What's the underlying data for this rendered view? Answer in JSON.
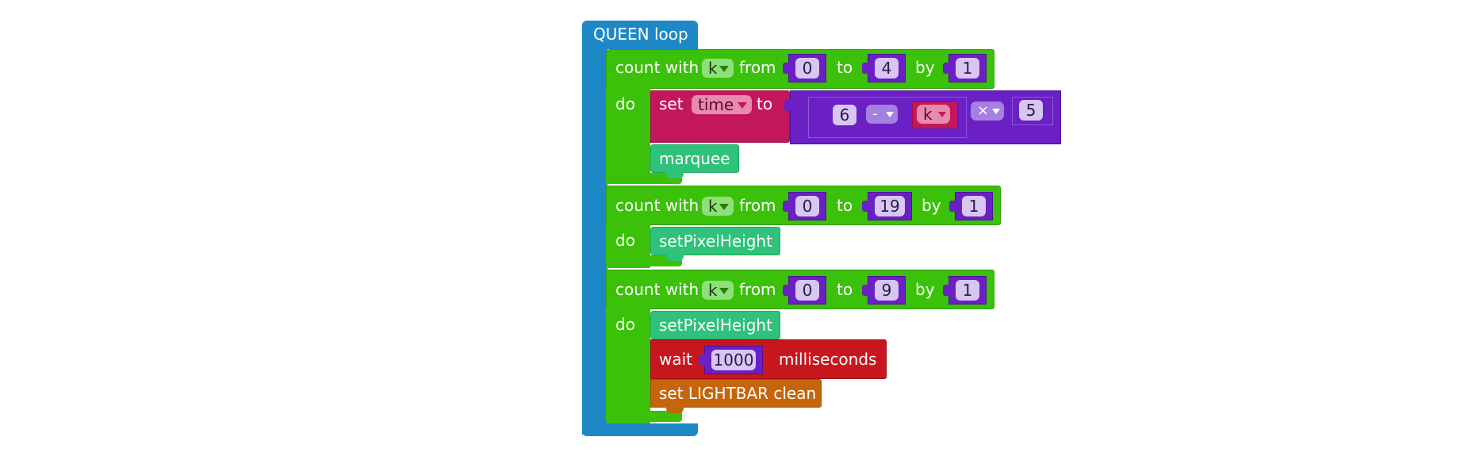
{
  "queen": {
    "title": "QUEEN loop"
  },
  "loop1": {
    "count_label": "count with",
    "var": "k",
    "from_label": "from",
    "from": "0",
    "to_label": "to",
    "to": "4",
    "by_label": "by",
    "by": "1",
    "do_label": "do",
    "set_label": "set",
    "set_var": "time",
    "set_to_label": "to",
    "expr": {
      "a": "6",
      "op1": "-",
      "b": "k",
      "op2": "×",
      "c": "5"
    },
    "marquee": "marquee"
  },
  "loop2": {
    "count_label": "count with",
    "var": "k",
    "from_label": "from",
    "from": "0",
    "to_label": "to",
    "to": "19",
    "by_label": "by",
    "by": "1",
    "do_label": "do",
    "stmt": "setPixelHeight"
  },
  "loop3": {
    "count_label": "count with",
    "var": "k",
    "from_label": "from",
    "from": "0",
    "to_label": "to",
    "to": "9",
    "by_label": "by",
    "by": "1",
    "do_label": "do",
    "stmt": "setPixelHeight",
    "wait_label": "wait",
    "wait_value": "1000",
    "wait_unit": "milliseconds",
    "lightbar": "set LIGHTBAR clean"
  },
  "colors": {
    "event_blue": "#1e88c6",
    "loop_green": "#3bc10a",
    "math_purple": "#6a20c4",
    "variable_magenta": "#c2185b",
    "function_green": "#2ec27a",
    "wait_red": "#c8161e",
    "lightbar_orange": "#c5650c"
  }
}
